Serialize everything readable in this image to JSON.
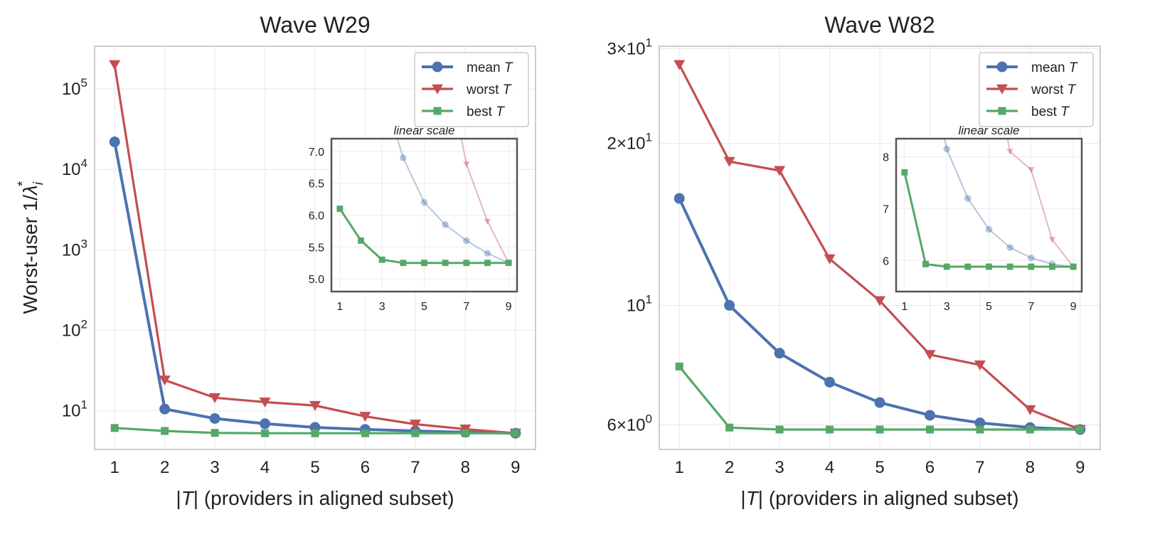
{
  "chart_data": [
    {
      "type": "line",
      "title": "Wave W29",
      "xlabel_pre": "|",
      "xlabel_var": "T",
      "xlabel_post": "| (providers in aligned subset)",
      "ylabel_pre": "Worst-user 1/",
      "ylabel_var": "λ",
      "ylabel_sub": "i",
      "ylabel_sup": "*",
      "yscale": "log",
      "xlim": [
        0.6,
        9.4
      ],
      "ylim": [
        3.3,
        340000
      ],
      "x": [
        1,
        2,
        3,
        4,
        5,
        6,
        7,
        8,
        9
      ],
      "x_tick_labels": [
        "1",
        "2",
        "3",
        "4",
        "5",
        "6",
        "7",
        "8",
        "9"
      ],
      "y_ticks": [
        {
          "value": 10,
          "base": "10",
          "exp": "1"
        },
        {
          "value": 100,
          "base": "10",
          "exp": "2"
        },
        {
          "value": 1000,
          "base": "10",
          "exp": "3"
        },
        {
          "value": 10000,
          "base": "10",
          "exp": "4"
        },
        {
          "value": 100000,
          "base": "10",
          "exp": "5"
        }
      ],
      "series": [
        {
          "name": "mean T",
          "legend_text": "mean ",
          "legend_var": "T",
          "color": "#4c72b0",
          "marker": "circle",
          "values": [
            22000,
            10.5,
            8.0,
            6.9,
            6.2,
            5.85,
            5.6,
            5.4,
            5.25
          ]
        },
        {
          "name": "worst T",
          "legend_text": "worst ",
          "legend_var": "T",
          "color": "#c44e52",
          "marker": "triangle-down",
          "values": [
            200000,
            24,
            14.5,
            12.8,
            11.6,
            8.5,
            6.8,
            5.9,
            5.25
          ]
        },
        {
          "name": "best T",
          "legend_text": "best ",
          "legend_var": "T",
          "color": "#55a868",
          "marker": "square",
          "values": [
            6.1,
            5.6,
            5.3,
            5.25,
            5.25,
            5.25,
            5.25,
            5.25,
            5.25
          ]
        }
      ],
      "legend_position": "top-right",
      "inset": {
        "title": "linear scale",
        "yscale": "linear",
        "xlim": [
          0.6,
          9.4
        ],
        "ylim": [
          4.8,
          7.2
        ],
        "x_ticks": [
          1,
          3,
          5,
          7,
          9
        ],
        "x_tick_labels": [
          "1",
          "3",
          "5",
          "7",
          "9"
        ],
        "y_ticks": [
          5.0,
          5.5,
          6.0,
          6.5,
          7.0
        ],
        "y_tick_labels": [
          "5.0",
          "5.5",
          "6.0",
          "6.5",
          "7.0"
        ]
      }
    },
    {
      "type": "line",
      "title": "Wave W82",
      "xlabel_pre": "|",
      "xlabel_var": "T",
      "xlabel_post": "| (providers in aligned subset)",
      "yscale": "log",
      "xlim": [
        0.6,
        9.4
      ],
      "ylim": [
        5.4,
        30.3
      ],
      "x": [
        1,
        2,
        3,
        4,
        5,
        6,
        7,
        8,
        9
      ],
      "x_tick_labels": [
        "1",
        "2",
        "3",
        "4",
        "5",
        "6",
        "7",
        "8",
        "9"
      ],
      "y_ticks": [
        {
          "value": 6,
          "base": "6×10",
          "exp": "0"
        },
        {
          "value": 10,
          "base": "10",
          "exp": "1"
        },
        {
          "value": 20,
          "base": "2×10",
          "exp": "1"
        },
        {
          "value": 30,
          "base": "3×10",
          "exp": "1"
        }
      ],
      "series": [
        {
          "name": "mean T",
          "legend_text": "mean ",
          "legend_var": "T",
          "color": "#4c72b0",
          "marker": "circle",
          "values": [
            15.8,
            10.0,
            8.15,
            7.2,
            6.6,
            6.25,
            6.05,
            5.93,
            5.88
          ]
        },
        {
          "name": "worst T",
          "legend_text": "worst ",
          "legend_var": "T",
          "color": "#c44e52",
          "marker": "triangle-down",
          "values": [
            28.0,
            18.5,
            17.8,
            12.2,
            10.2,
            8.1,
            7.75,
            6.4,
            5.88
          ]
        },
        {
          "name": "best T",
          "legend_text": "best ",
          "legend_var": "T",
          "color": "#55a868",
          "marker": "square",
          "values": [
            7.7,
            5.93,
            5.88,
            5.88,
            5.88,
            5.88,
            5.88,
            5.88,
            5.88
          ]
        }
      ],
      "legend_position": "top-right",
      "inset": {
        "title": "linear scale",
        "yscale": "linear",
        "xlim": [
          0.6,
          9.4
        ],
        "ylim": [
          5.4,
          8.35
        ],
        "x_ticks": [
          1,
          3,
          5,
          7,
          9
        ],
        "x_tick_labels": [
          "1",
          "3",
          "5",
          "7",
          "9"
        ],
        "y_ticks": [
          6,
          7,
          8
        ],
        "y_tick_labels": [
          "6",
          "7",
          "8"
        ]
      }
    }
  ]
}
